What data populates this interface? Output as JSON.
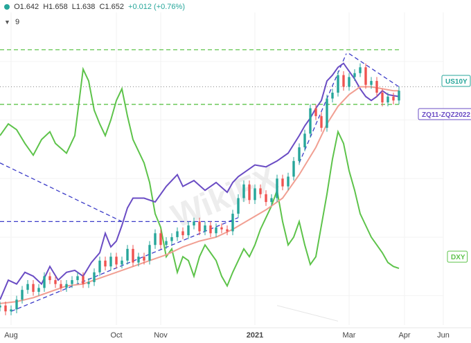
{
  "legend": {
    "open": "O1.642",
    "high": "H1.658",
    "low": "L1.638",
    "close": "C1.652",
    "change": "+0.012 (+0.76%)",
    "indicators_count": "9"
  },
  "chart_data": {
    "type": "line",
    "x_ticks": [
      "Aug",
      "Oct",
      "Nov",
      "2021",
      "Mar",
      "Apr",
      "Jun"
    ],
    "series": [
      {
        "name": "US10Y",
        "color": "#26a69a",
        "note": "candlestick series",
        "values": [
          [
            0,
            0.55
          ],
          [
            2,
            0.52
          ],
          [
            4,
            0.53
          ],
          [
            6,
            0.58
          ],
          [
            8,
            0.63
          ],
          [
            10,
            0.66
          ],
          [
            12,
            0.62
          ],
          [
            14,
            0.64
          ],
          [
            16,
            0.7
          ],
          [
            18,
            0.68
          ],
          [
            20,
            0.66
          ],
          [
            22,
            0.64
          ],
          [
            24,
            0.66
          ],
          [
            26,
            0.68
          ],
          [
            28,
            0.7
          ],
          [
            30,
            0.66
          ],
          [
            32,
            0.67
          ],
          [
            34,
            0.72
          ],
          [
            36,
            0.78
          ],
          [
            38,
            0.75
          ],
          [
            40,
            0.8
          ],
          [
            42,
            0.76
          ],
          [
            44,
            0.78
          ],
          [
            46,
            0.84
          ],
          [
            48,
            0.77
          ],
          [
            50,
            0.8
          ],
          [
            52,
            0.78
          ],
          [
            54,
            0.86
          ],
          [
            56,
            0.92
          ],
          [
            58,
            0.86
          ],
          [
            60,
            0.88
          ],
          [
            62,
            0.9
          ],
          [
            64,
            0.93
          ],
          [
            66,
            0.91
          ],
          [
            68,
            0.96
          ],
          [
            70,
            0.98
          ],
          [
            72,
            0.93
          ],
          [
            74,
            0.96
          ],
          [
            76,
            0.92
          ],
          [
            78,
            0.95
          ],
          [
            80,
            0.94
          ],
          [
            82,
            0.93
          ],
          [
            84,
            1.02
          ],
          [
            86,
            1.1
          ],
          [
            88,
            1.17
          ],
          [
            90,
            1.09
          ],
          [
            92,
            1.15
          ],
          [
            94,
            1.12
          ],
          [
            96,
            1.08
          ],
          [
            98,
            1.1
          ],
          [
            100,
            1.2
          ],
          [
            102,
            1.16
          ],
          [
            104,
            1.21
          ],
          [
            106,
            1.29
          ],
          [
            108,
            1.36
          ],
          [
            110,
            1.43
          ],
          [
            112,
            1.56
          ],
          [
            114,
            1.52
          ],
          [
            116,
            1.46
          ],
          [
            118,
            1.61
          ],
          [
            120,
            1.64
          ],
          [
            122,
            1.73
          ],
          [
            124,
            1.67
          ],
          [
            126,
            1.72
          ],
          [
            128,
            1.74
          ],
          [
            130,
            1.77
          ],
          [
            132,
            1.68
          ],
          [
            134,
            1.7
          ],
          [
            136,
            1.64
          ],
          [
            138,
            1.59
          ],
          [
            140,
            1.62
          ],
          [
            142,
            1.6
          ],
          [
            144,
            1.65
          ]
        ]
      },
      {
        "name": "ZQ11-ZQZ2022",
        "color": "#6a4cc4",
        "values": [
          [
            0,
            0.58
          ],
          [
            3,
            0.68
          ],
          [
            6,
            0.66
          ],
          [
            9,
            0.72
          ],
          [
            12,
            0.7
          ],
          [
            15,
            0.66
          ],
          [
            18,
            0.75
          ],
          [
            21,
            0.68
          ],
          [
            24,
            0.72
          ],
          [
            27,
            0.73
          ],
          [
            30,
            0.7
          ],
          [
            33,
            0.77
          ],
          [
            36,
            0.82
          ],
          [
            38,
            0.92
          ],
          [
            40,
            0.85
          ],
          [
            42,
            0.88
          ],
          [
            44,
            0.96
          ],
          [
            46,
            1.05
          ],
          [
            48,
            1.1
          ],
          [
            52,
            1.1
          ],
          [
            56,
            1.08
          ],
          [
            60,
            1.16
          ],
          [
            64,
            1.22
          ],
          [
            66,
            1.16
          ],
          [
            70,
            1.19
          ],
          [
            74,
            1.14
          ],
          [
            78,
            1.18
          ],
          [
            82,
            1.13
          ],
          [
            84,
            1.18
          ],
          [
            86,
            1.21
          ],
          [
            88,
            1.23
          ],
          [
            92,
            1.27
          ],
          [
            96,
            1.26
          ],
          [
            100,
            1.29
          ],
          [
            104,
            1.33
          ],
          [
            108,
            1.42
          ],
          [
            110,
            1.47
          ],
          [
            112,
            1.51
          ],
          [
            114,
            1.56
          ],
          [
            116,
            1.6
          ],
          [
            118,
            1.7
          ],
          [
            120,
            1.73
          ],
          [
            122,
            1.77
          ],
          [
            124,
            1.79
          ],
          [
            126,
            1.75
          ],
          [
            128,
            1.71
          ],
          [
            130,
            1.66
          ],
          [
            132,
            1.62
          ],
          [
            134,
            1.6
          ],
          [
            136,
            1.62
          ],
          [
            138,
            1.65
          ],
          [
            140,
            1.63
          ],
          [
            144,
            1.62
          ]
        ]
      },
      {
        "name": "DXY",
        "color": "#5dc34a",
        "values": [
          [
            0,
            1.42
          ],
          [
            3,
            1.48
          ],
          [
            6,
            1.45
          ],
          [
            9,
            1.38
          ],
          [
            12,
            1.32
          ],
          [
            15,
            1.4
          ],
          [
            18,
            1.44
          ],
          [
            20,
            1.38
          ],
          [
            24,
            1.33
          ],
          [
            27,
            1.42
          ],
          [
            30,
            1.76
          ],
          [
            32,
            1.7
          ],
          [
            34,
            1.55
          ],
          [
            36,
            1.48
          ],
          [
            38,
            1.42
          ],
          [
            40,
            1.5
          ],
          [
            42,
            1.6
          ],
          [
            44,
            1.66
          ],
          [
            46,
            1.52
          ],
          [
            48,
            1.4
          ],
          [
            50,
            1.34
          ],
          [
            52,
            1.28
          ],
          [
            54,
            1.18
          ],
          [
            56,
            1.02
          ],
          [
            58,
            0.95
          ],
          [
            60,
            0.8
          ],
          [
            62,
            0.84
          ],
          [
            64,
            0.72
          ],
          [
            66,
            0.8
          ],
          [
            68,
            0.78
          ],
          [
            70,
            0.7
          ],
          [
            72,
            0.8
          ],
          [
            74,
            0.86
          ],
          [
            76,
            0.82
          ],
          [
            78,
            0.78
          ],
          [
            80,
            0.7
          ],
          [
            82,
            0.65
          ],
          [
            84,
            0.72
          ],
          [
            86,
            0.78
          ],
          [
            88,
            0.84
          ],
          [
            90,
            0.8
          ],
          [
            92,
            0.86
          ],
          [
            94,
            0.94
          ],
          [
            96,
            1.0
          ],
          [
            98,
            1.06
          ],
          [
            100,
            1.14
          ],
          [
            102,
            0.98
          ],
          [
            104,
            0.86
          ],
          [
            106,
            0.9
          ],
          [
            108,
            0.98
          ],
          [
            110,
            0.86
          ],
          [
            112,
            0.76
          ],
          [
            114,
            0.8
          ],
          [
            116,
            0.96
          ],
          [
            118,
            1.12
          ],
          [
            120,
            1.3
          ],
          [
            122,
            1.44
          ],
          [
            124,
            1.38
          ],
          [
            126,
            1.24
          ],
          [
            128,
            1.14
          ],
          [
            130,
            1.02
          ],
          [
            132,
            0.96
          ],
          [
            134,
            0.9
          ],
          [
            136,
            0.86
          ],
          [
            138,
            0.82
          ],
          [
            140,
            0.77
          ],
          [
            142,
            0.75
          ],
          [
            144,
            0.74
          ]
        ]
      },
      {
        "name": "",
        "color": "#f19f92",
        "note": "moving average of US10Y",
        "values": [
          [
            0,
            0.56
          ],
          [
            6,
            0.57
          ],
          [
            12,
            0.59
          ],
          [
            18,
            0.62
          ],
          [
            24,
            0.65
          ],
          [
            30,
            0.66
          ],
          [
            36,
            0.69
          ],
          [
            42,
            0.72
          ],
          [
            48,
            0.75
          ],
          [
            54,
            0.78
          ],
          [
            60,
            0.81
          ],
          [
            66,
            0.85
          ],
          [
            72,
            0.88
          ],
          [
            78,
            0.9
          ],
          [
            84,
            0.94
          ],
          [
            90,
            0.99
          ],
          [
            96,
            1.04
          ],
          [
            102,
            1.1
          ],
          [
            108,
            1.22
          ],
          [
            114,
            1.36
          ],
          [
            118,
            1.48
          ],
          [
            122,
            1.57
          ],
          [
            126,
            1.63
          ],
          [
            130,
            1.67
          ],
          [
            134,
            1.67
          ],
          [
            138,
            1.66
          ],
          [
            142,
            1.65
          ],
          [
            144,
            1.65
          ]
        ]
      }
    ],
    "annotations": [
      {
        "type": "dashed_horizontal",
        "color": "#5dc34a",
        "y": 1.86
      },
      {
        "type": "dashed_horizontal",
        "color": "#5dc34a",
        "y": 1.58
      },
      {
        "type": "dotted_horizontal",
        "color": "#888888",
        "y": 1.67
      },
      {
        "type": "dashed_horizontal",
        "color": "#3b3bc8",
        "y": 0.98
      },
      {
        "type": "dashed_trend",
        "color": "#3b3bc8",
        "from": [
          0,
          1.28
        ],
        "to": [
          44,
          0.98
        ]
      },
      {
        "type": "dashed_trend",
        "color": "#3b3bc8",
        "from": [
          4,
          0.52
        ],
        "to": [
          86,
          1.0
        ]
      },
      {
        "type": "dashed_trend",
        "color": "#3b3bc8",
        "from": [
          108,
          1.28
        ],
        "to": [
          125,
          1.84
        ]
      },
      {
        "type": "dashed_trend",
        "color": "#3b3bc8",
        "from": [
          126,
          1.84
        ],
        "to": [
          144,
          1.67
        ]
      }
    ],
    "labels": [
      {
        "text": "US10Y",
        "color": "#26a69a"
      },
      {
        "text": "ZQ11-ZQZ2022",
        "color": "#6a4cc4"
      },
      {
        "text": "DXY",
        "color": "#5dc34a"
      }
    ],
    "watermark": "WikiFX",
    "xlim": [
      0,
      160
    ],
    "ylim": [
      0.45,
      1.98
    ]
  }
}
